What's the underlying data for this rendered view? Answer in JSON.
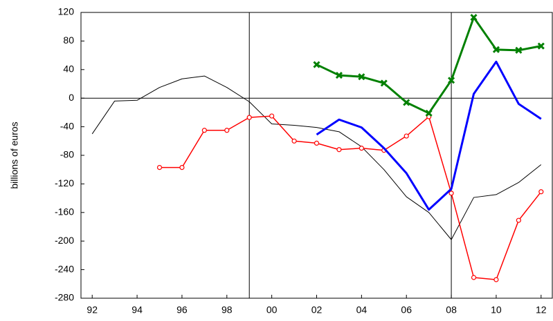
{
  "chart_data": {
    "type": "line",
    "ylabel": "billions of euros",
    "x": [
      1992,
      1993,
      1994,
      1995,
      1996,
      1997,
      1998,
      1999,
      2000,
      2001,
      2002,
      2003,
      2004,
      2005,
      2006,
      2007,
      2008,
      2009,
      2010,
      2011,
      2012
    ],
    "series": [
      {
        "color": "#000000",
        "width": 1,
        "marker": "none",
        "values": [
          -50,
          -4,
          -3,
          15,
          27,
          31,
          15,
          -5,
          -36,
          -38,
          -41,
          -47,
          -68,
          -100,
          -138,
          -160,
          -198,
          -139,
          -135,
          -118,
          -93
        ]
      },
      {
        "color": "#ff0000",
        "width": 1.5,
        "marker": "circle",
        "values": [
          null,
          null,
          null,
          -97,
          -97,
          -45,
          -45,
          -27,
          -25,
          -60,
          -63,
          -72,
          -70,
          -73,
          -53,
          -26,
          -133,
          -251,
          -254,
          -171,
          -131
        ]
      },
      {
        "color": "#0000ff",
        "width": 3,
        "marker": "none",
        "values": [
          null,
          null,
          null,
          null,
          null,
          null,
          null,
          null,
          null,
          null,
          -51,
          -30,
          -41,
          -70,
          -105,
          -156,
          -127,
          6,
          51,
          -8,
          -29
        ]
      },
      {
        "color": "#008000",
        "width": 3,
        "marker": "cross",
        "values": [
          null,
          null,
          null,
          null,
          null,
          null,
          null,
          null,
          null,
          null,
          47,
          32,
          30,
          21,
          -6,
          -21,
          25,
          113,
          68,
          67,
          73
        ]
      }
    ],
    "xlim": [
      1991.5,
      2012.5
    ],
    "xticks": [
      {
        "value": 1992,
        "label": "92"
      },
      {
        "value": 1994,
        "label": "94"
      },
      {
        "value": 1996,
        "label": "96"
      },
      {
        "value": 1998,
        "label": "98"
      },
      {
        "value": 2000,
        "label": "00"
      },
      {
        "value": 2002,
        "label": "02"
      },
      {
        "value": 2004,
        "label": "04"
      },
      {
        "value": 2006,
        "label": "06"
      },
      {
        "value": 2008,
        "label": "08"
      },
      {
        "value": 2010,
        "label": "10"
      },
      {
        "value": 2012,
        "label": "12"
      }
    ],
    "ylim": [
      -280,
      120
    ],
    "yticks": [
      -280,
      -240,
      -200,
      -160,
      -120,
      -80,
      -40,
      0,
      40,
      80,
      120
    ],
    "vlines": [
      1999,
      2008
    ],
    "hlines": [
      0
    ]
  }
}
